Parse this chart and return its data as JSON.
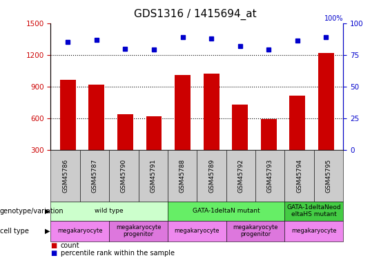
{
  "title": "GDS1316 / 1415694_at",
  "samples": [
    "GSM45786",
    "GSM45787",
    "GSM45790",
    "GSM45791",
    "GSM45788",
    "GSM45789",
    "GSM45792",
    "GSM45793",
    "GSM45794",
    "GSM45795"
  ],
  "counts": [
    960,
    920,
    635,
    615,
    1010,
    1020,
    725,
    590,
    810,
    1220
  ],
  "percentiles": [
    85,
    87,
    80,
    79,
    89,
    88,
    82,
    79,
    86,
    89
  ],
  "ylim_left": [
    300,
    1500
  ],
  "ylim_right": [
    0,
    100
  ],
  "yticks_left": [
    300,
    600,
    900,
    1200,
    1500
  ],
  "yticks_right": [
    0,
    25,
    50,
    75,
    100
  ],
  "bar_color": "#cc0000",
  "dot_color": "#0000cc",
  "bar_width": 0.55,
  "genotype_groups": [
    {
      "label": "wild type",
      "start": 0,
      "end": 4,
      "color": "#ccffcc"
    },
    {
      "label": "GATA-1deltaN mutant",
      "start": 4,
      "end": 8,
      "color": "#66ee66"
    },
    {
      "label": "GATA-1deltaNeod\neltaHS mutant",
      "start": 8,
      "end": 10,
      "color": "#44cc44"
    }
  ],
  "cell_type_groups": [
    {
      "label": "megakaryocyte",
      "start": 0,
      "end": 2,
      "color": "#ee88ee"
    },
    {
      "label": "megakaryocyte\nprogenitor",
      "start": 2,
      "end": 4,
      "color": "#dd77dd"
    },
    {
      "label": "megakaryocyte",
      "start": 4,
      "end": 6,
      "color": "#ee88ee"
    },
    {
      "label": "megakaryocyte\nprogenitor",
      "start": 6,
      "end": 8,
      "color": "#dd77dd"
    },
    {
      "label": "megakaryocyte",
      "start": 8,
      "end": 10,
      "color": "#ee88ee"
    }
  ],
  "left_axis_color": "#cc0000",
  "right_axis_color": "#0000cc",
  "title_fontsize": 11,
  "tick_fontsize": 7.5,
  "annot_fontsize": 7,
  "legend_fontsize": 7,
  "xtick_bg": "#cccccc"
}
